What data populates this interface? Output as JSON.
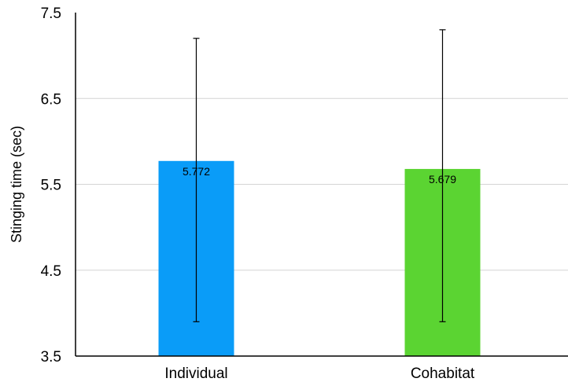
{
  "chart_data": {
    "type": "bar",
    "title": "",
    "xlabel": "",
    "ylabel": "Stinging time (sec)",
    "ylim": [
      3.5,
      7.5
    ],
    "yticks": [
      "3.5",
      "4.5",
      "5.5",
      "6.5",
      "7.5"
    ],
    "grid": true,
    "categories": [
      "Individual",
      "Cohabitat"
    ],
    "values": [
      5.772,
      5.679
    ],
    "value_labels": [
      "5.772",
      "5.679"
    ],
    "error_bars": [
      {
        "low": 3.9,
        "high": 7.2
      },
      {
        "low": 3.9,
        "high": 7.3
      }
    ],
    "colors": [
      "#0a9cf8",
      "#5bd432"
    ]
  }
}
